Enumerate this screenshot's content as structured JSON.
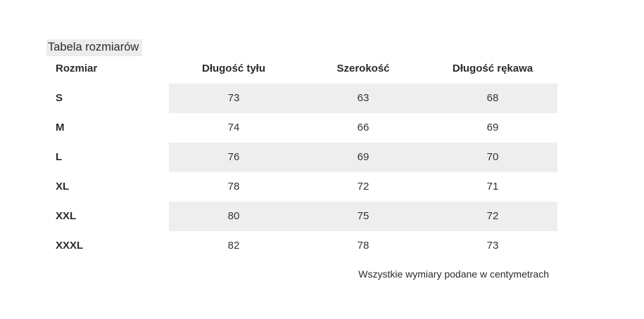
{
  "page": {
    "title": "Tabela rozmiarów",
    "footnote": "Wszystkie wymiary podane w centymetrach"
  },
  "table": {
    "columns": [
      "Rozmiar",
      "Długość tyłu",
      "Szerokość",
      "Długość rękawa"
    ],
    "rows": [
      {
        "size": "S",
        "values": [
          "73",
          "63",
          "68"
        ]
      },
      {
        "size": "M",
        "values": [
          "74",
          "66",
          "69"
        ]
      },
      {
        "size": "L",
        "values": [
          "76",
          "69",
          "70"
        ]
      },
      {
        "size": "XL",
        "values": [
          "78",
          "72",
          "71"
        ]
      },
      {
        "size": "XXL",
        "values": [
          "80",
          "75",
          "72"
        ]
      },
      {
        "size": "XXXL",
        "values": [
          "82",
          "78",
          "73"
        ]
      }
    ]
  },
  "colors": {
    "stripe": "#eeeeee",
    "title_highlight": "#ececec",
    "text": "#2b2b2b"
  },
  "chart_data": {
    "type": "table",
    "title": "Tabela rozmiarów",
    "columns": [
      "Rozmiar",
      "Długość tyłu",
      "Szerokość",
      "Długość rękawa"
    ],
    "rows": [
      [
        "S",
        73,
        63,
        68
      ],
      [
        "M",
        74,
        66,
        69
      ],
      [
        "L",
        76,
        69,
        70
      ],
      [
        "XL",
        78,
        72,
        71
      ],
      [
        "XXL",
        80,
        75,
        72
      ],
      [
        "XXXL",
        82,
        78,
        73
      ]
    ],
    "note": "Wszystkie wymiary podane w centymetrach",
    "layout_hints": {
      "striped_rows": "odd rows shaded on data columns only",
      "first_column_alignment": "left",
      "data_alignment": "center"
    }
  }
}
